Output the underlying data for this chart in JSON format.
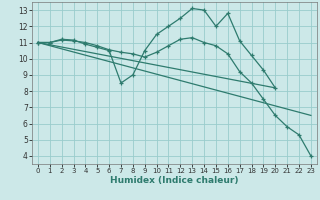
{
  "xlabel": "Humidex (Indice chaleur)",
  "bg_color": "#cce8e8",
  "grid_color": "#99cccc",
  "line_color": "#2e7b6e",
  "xlim": [
    -0.5,
    23.5
  ],
  "ylim": [
    3.5,
    13.5
  ],
  "yticks": [
    4,
    5,
    6,
    7,
    8,
    9,
    10,
    11,
    12,
    13
  ],
  "xticks": [
    0,
    1,
    2,
    3,
    4,
    5,
    6,
    7,
    8,
    9,
    10,
    11,
    12,
    13,
    14,
    15,
    16,
    17,
    18,
    19,
    20,
    21,
    22,
    23
  ],
  "series": [
    {
      "x": [
        0,
        1,
        2,
        3,
        4,
        5,
        6,
        7,
        8,
        9,
        10,
        11,
        12,
        13,
        14,
        15,
        16,
        17,
        18,
        19,
        20
      ],
      "y": [
        11,
        11,
        11.2,
        11.15,
        10.9,
        10.7,
        10.5,
        8.5,
        9.0,
        10.5,
        11.5,
        12.0,
        12.5,
        13.1,
        13.0,
        12.0,
        12.8,
        11.1,
        10.2,
        9.3,
        8.2
      ],
      "marker": true
    },
    {
      "x": [
        0,
        1,
        2,
        3,
        4,
        5,
        6,
        7,
        8,
        9,
        10,
        11,
        12,
        13,
        14,
        15,
        16,
        17,
        18,
        19,
        20,
        21,
        22,
        23
      ],
      "y": [
        11,
        11,
        11.15,
        11.1,
        11.0,
        10.8,
        10.55,
        10.4,
        10.3,
        10.1,
        10.4,
        10.8,
        11.2,
        11.3,
        11.0,
        10.8,
        10.3,
        9.2,
        8.5,
        7.5,
        6.5,
        5.8,
        5.3,
        4.0
      ],
      "marker": true
    },
    {
      "x": [
        0,
        20
      ],
      "y": [
        11,
        8.2
      ],
      "marker": false
    },
    {
      "x": [
        0,
        23
      ],
      "y": [
        11,
        6.5
      ],
      "marker": false
    }
  ]
}
